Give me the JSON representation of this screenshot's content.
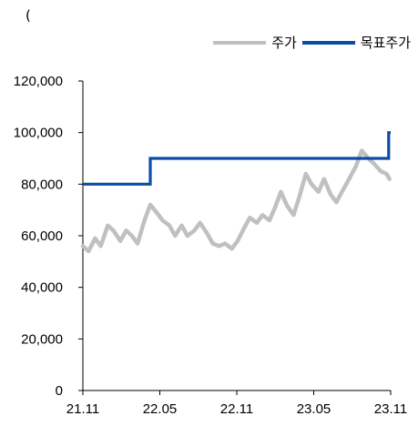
{
  "unit_label": "(",
  "colors": {
    "price": "#c0c0c0",
    "target": "#0b4da2",
    "axis": "#000000"
  },
  "chart_data": {
    "type": "line",
    "x_ticks": [
      "21.11",
      "22.05",
      "22.11",
      "23.05",
      "23.11"
    ],
    "y_ticks": [
      "0",
      "20,000",
      "40,000",
      "60,000",
      "80,000",
      "100,000",
      "120,000"
    ],
    "ylim": [
      0,
      120000
    ],
    "xlim": [
      "2021-11-01",
      "2023-11-25"
    ],
    "legend_position": "top-right",
    "grid": false,
    "series": [
      {
        "name": "주가",
        "color": "#c0c0c0",
        "x": [
          "2021-11-01",
          "2021-11-15",
          "2021-12-01",
          "2021-12-15",
          "2022-01-01",
          "2022-01-15",
          "2022-02-01",
          "2022-02-15",
          "2022-03-01",
          "2022-03-15",
          "2022-04-01",
          "2022-04-15",
          "2022-05-01",
          "2022-05-15",
          "2022-06-01",
          "2022-06-15",
          "2022-07-01",
          "2022-07-15",
          "2022-08-01",
          "2022-08-15",
          "2022-09-01",
          "2022-09-15",
          "2022-10-01",
          "2022-10-15",
          "2022-11-01",
          "2022-11-15",
          "2022-12-01",
          "2022-12-15",
          "2023-01-01",
          "2023-01-15",
          "2023-02-01",
          "2023-02-15",
          "2023-03-01",
          "2023-03-15",
          "2023-04-01",
          "2023-04-15",
          "2023-05-01",
          "2023-05-15",
          "2023-06-01",
          "2023-06-15",
          "2023-07-01",
          "2023-07-15",
          "2023-08-01",
          "2023-08-15",
          "2023-09-01",
          "2023-09-15",
          "2023-10-01",
          "2023-10-15",
          "2023-11-01",
          "2023-11-15",
          "2023-11-22"
        ],
        "values": [
          56000,
          54000,
          59000,
          56000,
          64000,
          62000,
          58000,
          62000,
          60000,
          57000,
          66000,
          72000,
          69000,
          66000,
          64000,
          60000,
          64000,
          60000,
          62000,
          65000,
          61000,
          57000,
          56000,
          57000,
          55000,
          58000,
          63000,
          67000,
          65000,
          68000,
          66000,
          71000,
          77000,
          72000,
          68000,
          75000,
          84000,
          80000,
          77000,
          82000,
          76000,
          73000,
          78000,
          82000,
          87000,
          93000,
          90000,
          88000,
          85000,
          84000,
          82000
        ]
      },
      {
        "name": "목표주가",
        "color": "#0b4da2",
        "x": [
          "2021-11-01",
          "2022-04-15",
          "2022-04-15",
          "2023-11-20",
          "2023-11-20",
          "2023-11-25"
        ],
        "values": [
          80000,
          80000,
          90000,
          90000,
          100000,
          100000
        ]
      }
    ]
  }
}
